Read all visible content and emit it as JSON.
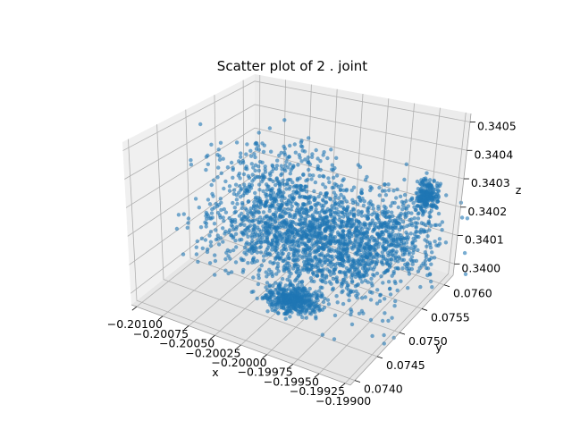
{
  "chart_data": {
    "type": "scatter",
    "projection": "3d",
    "title": "Scatter plot of 2 . joint",
    "xlabel": "x",
    "ylabel": "y",
    "zlabel": "z",
    "x_ticks": [
      -0.201,
      -0.20075,
      -0.2005,
      -0.20025,
      -0.2,
      -0.19975,
      -0.1995,
      -0.19925,
      -0.199
    ],
    "x_tick_labels": [
      "−0.20100",
      "−0.20075",
      "−0.20050",
      "−0.20025",
      "−0.20000",
      "−0.19975",
      "−0.19950",
      "−0.19925",
      "−0.19900"
    ],
    "y_ticks": [
      0.074,
      0.0745,
      0.075,
      0.0755,
      0.076
    ],
    "y_tick_labels": [
      "0.0740",
      "0.0745",
      "0.0750",
      "0.0755",
      "0.0760"
    ],
    "z_ticks": [
      0.34,
      0.3401,
      0.3402,
      0.3403,
      0.3404,
      0.3405
    ],
    "z_tick_labels": [
      "0.3400",
      "0.3401",
      "0.3402",
      "0.3403",
      "0.3404",
      "0.3405"
    ],
    "xlim": [
      -0.20105,
      -0.19895
    ],
    "ylim": [
      0.0739,
      0.0762
    ],
    "zlim": [
      0.33996,
      0.34053
    ],
    "grid": true,
    "colors": {
      "points": "#1f77b4",
      "pane": "#f2f2f2",
      "grid": "#b0b0b0"
    },
    "series": [
      {
        "marker": "circle",
        "approx_point_count": 3000,
        "clusters": [
          {
            "x": -0.19995,
            "y": 0.07485,
            "z": 0.33997,
            "spread": [
              0.00012,
              0.00012,
              5e-06
            ],
            "fraction": 0.14
          },
          {
            "x": -0.2001,
            "y": 0.0752,
            "z": 0.34012,
            "spread": [
              0.0004,
              0.00035,
              5e-05
            ],
            "fraction": 0.34
          },
          {
            "x": -0.1995,
            "y": 0.0756,
            "z": 0.34015,
            "spread": [
              0.0003,
              0.0003,
              6e-05
            ],
            "fraction": 0.22
          },
          {
            "x": -0.2005,
            "y": 0.0757,
            "z": 0.3402,
            "spread": [
              0.0003,
              0.0003,
              8e-05
            ],
            "fraction": 0.13
          },
          {
            "x": -0.1994,
            "y": 0.0747,
            "z": 0.3402,
            "spread": [
              0.0003,
              0.0003,
              8e-05
            ],
            "fraction": 0.1
          },
          {
            "x": -0.1992,
            "y": 0.076,
            "z": 0.34025,
            "spread": [
              5e-05,
              5e-05,
              3e-05
            ],
            "fraction": 0.07
          }
        ]
      }
    ]
  }
}
